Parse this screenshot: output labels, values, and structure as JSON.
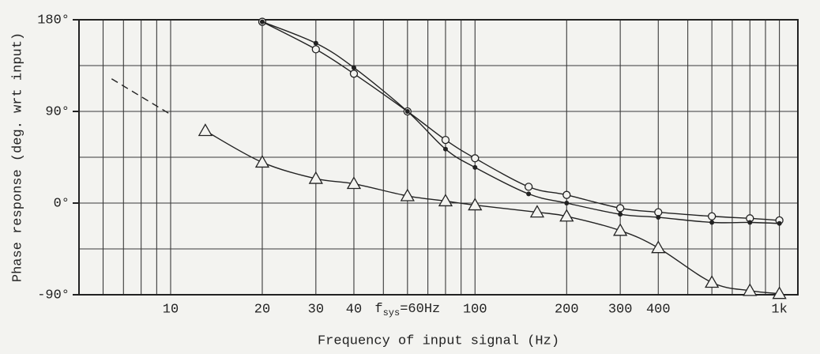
{
  "chart_data": {
    "type": "line",
    "y_label": "Phase response (deg. wrt input)",
    "x_label": "Frequency of input signal (Hz)",
    "x_scale": "log",
    "xlim": [
      5,
      1150
    ],
    "ylim": [
      -90,
      180
    ],
    "xticks": [
      10,
      20,
      30,
      40,
      100,
      200,
      300,
      400,
      {
        "value": 1000,
        "label": "1k"
      }
    ],
    "x_minor_grid": [
      6,
      7,
      8,
      9,
      50,
      60,
      70,
      80,
      90,
      500,
      600,
      700,
      800,
      900
    ],
    "yticks": [
      {
        "value": 180,
        "label": "180°"
      },
      {
        "value": 90,
        "label": "90°"
      },
      {
        "value": 0,
        "label": "0°"
      },
      {
        "value": -90,
        "label": "-90°"
      }
    ],
    "y_minor_grid": [
      135,
      45,
      -45
    ],
    "grid": true,
    "annotation": {
      "x": 60,
      "parts": [
        "f",
        "sys",
        "=60Hz"
      ]
    },
    "series": [
      {
        "marker": "circle-open",
        "color": "#222222",
        "style": "solid",
        "x": [
          20,
          30,
          40,
          60,
          80,
          100,
          150,
          200,
          300,
          400,
          600,
          800,
          1000
        ],
        "values": [
          178,
          151,
          127,
          90,
          62,
          44,
          16,
          8,
          -5,
          -9,
          -13,
          -15,
          -17
        ]
      },
      {
        "marker": "dot",
        "color": "#222222",
        "style": "solid",
        "x": [
          20,
          30,
          40,
          60,
          80,
          100,
          150,
          200,
          300,
          400,
          600,
          800,
          1000
        ],
        "values": [
          178,
          157,
          133,
          90,
          53,
          35,
          9,
          0,
          -11,
          -14,
          -19,
          -19,
          -20
        ]
      },
      {
        "marker": "triangle",
        "color": "#222222",
        "style": "solid",
        "x": [
          13,
          20,
          30,
          40,
          60,
          80,
          100,
          160,
          200,
          300,
          400,
          600,
          800,
          1000
        ],
        "values": [
          71,
          40,
          24,
          19,
          7,
          2,
          -2,
          -9,
          -13,
          -27,
          -44,
          -78,
          -86,
          -89
        ]
      },
      {
        "marker": "none",
        "color": "#222222",
        "style": "dashed",
        "x": [
          6.4,
          10
        ],
        "values": [
          122,
          87
        ]
      }
    ]
  }
}
